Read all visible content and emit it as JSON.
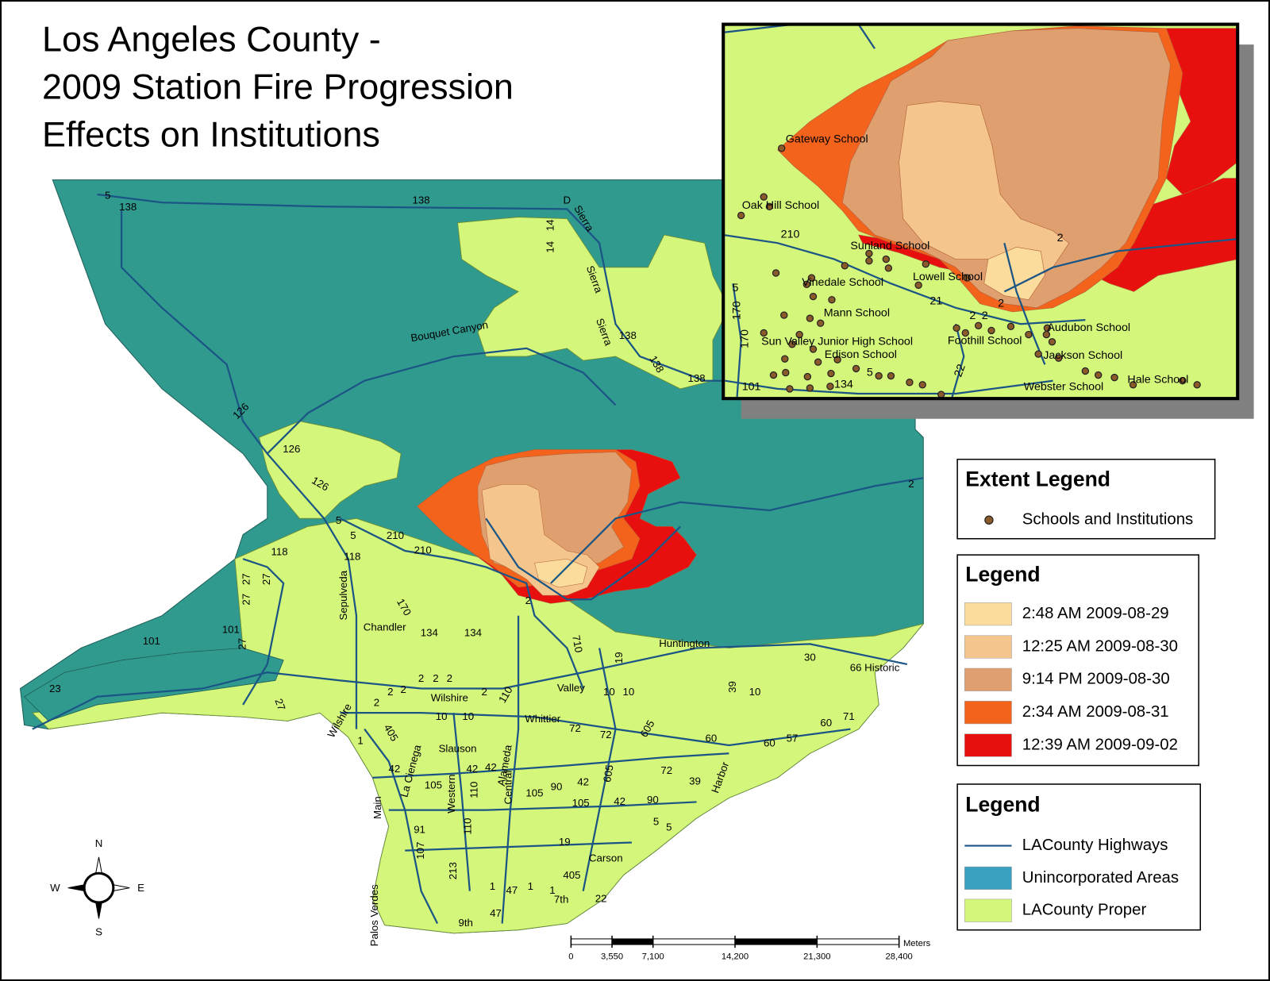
{
  "title": [
    "Los Angeles County -",
    "2009 Station Fire Progression",
    "Effects on Institutions"
  ],
  "extent_legend": {
    "title": "Extent Legend",
    "items": [
      "Schools and Institutions"
    ]
  },
  "fire_legend": {
    "title": "Legend",
    "items": [
      {
        "label": "2:48 AM 2009-08-29",
        "color": "#fbdc9c"
      },
      {
        "label": "12:25 AM 2009-08-30",
        "color": "#f4c58c"
      },
      {
        "label": "9:14 PM 2009-08-30",
        "color": "#df9f6f"
      },
      {
        "label": "2:34 AM 2009-08-31",
        "color": "#f4631c"
      },
      {
        "label": "12:39 AM 2009-09-02",
        "color": "#e8100f"
      }
    ]
  },
  "layer_legend": {
    "title": "Legend",
    "items": [
      {
        "label": "LACounty Highways",
        "color": "#1b5585"
      },
      {
        "label": "Unincorporated Areas",
        "color": "#3aa0c0"
      },
      {
        "label": "LACounty Proper",
        "color": "#d4f67a"
      }
    ]
  },
  "compass": {
    "north": "N",
    "east": "E",
    "south": "S",
    "west": "W"
  },
  "scale_bar": {
    "unit": "Meters",
    "ticks": [
      0,
      {
        "value": 3550,
        "label": "3,550"
      },
      {
        "value": 7100,
        "label": "7,100"
      },
      {
        "value": 14200,
        "label": "14,200"
      },
      {
        "value": 21300,
        "label": "21,300"
      },
      {
        "value": 28400,
        "label": "28,400"
      }
    ]
  },
  "map_labels": [
    "5",
    "138",
    "138",
    "D",
    "Sierra",
    "14",
    "14",
    "Sierra",
    "Sierra",
    "138",
    "138",
    "138",
    "Bouquet Canyon",
    "126",
    "126",
    "126",
    "5",
    "5",
    "210",
    "210",
    "118",
    "118",
    "27",
    "27",
    "27",
    "101",
    "101",
    "27",
    "Sepulveda",
    "170",
    "Chandler",
    "134",
    "134",
    "2",
    "710",
    "Huntington",
    "30",
    "66 Historic",
    "19",
    "23",
    "27",
    "Wilshire",
    "Wilshire",
    "2",
    "2",
    "2",
    "2",
    "2",
    "2",
    "2",
    "110",
    "Valley",
    "10",
    "10",
    "10",
    "39",
    "10",
    "10",
    "Whittier",
    "72",
    "72",
    "605",
    "71",
    "60",
    "57",
    "60",
    "60",
    "405",
    "1",
    "Slauson",
    "La Cienega",
    "Alameda",
    "42",
    "42",
    "42",
    "105",
    "Western",
    "110",
    "Central",
    "105",
    "90",
    "42",
    "605",
    "72",
    "39",
    "Harbor",
    "Main",
    "90",
    "105",
    "42",
    "91",
    "110",
    "19",
    "5",
    "5",
    "107",
    "Carson",
    "213",
    "405",
    "1",
    "1",
    "1",
    "47",
    "7th",
    "22",
    "9th",
    "47",
    "Palos Verdes",
    "2"
  ],
  "inset_labels": [
    "Gateway School",
    "Oak Hill School",
    "210",
    "Sunland School",
    "2",
    "Vinedale School",
    "Lowell School",
    "5",
    "Mann School",
    "21",
    "2",
    "2",
    "2",
    "170",
    "Audubon School",
    "Sun Valley Junior High School",
    "Foothill School",
    "170",
    "Edison School",
    "Jackson School",
    "5",
    "134",
    "22",
    "101",
    "Webster School",
    "Hale School"
  ]
}
